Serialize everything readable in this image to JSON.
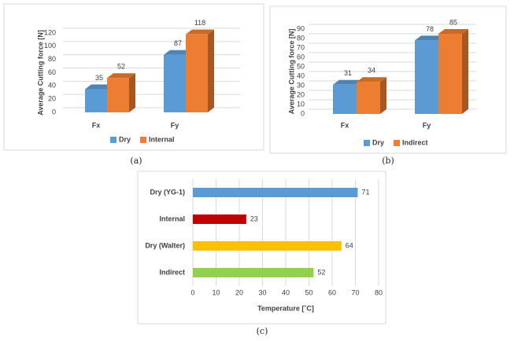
{
  "chart_data": [
    {
      "type": "bar3d",
      "caption": "(a)",
      "y_label": "Average Cutting force [N]",
      "categories": [
        "Fx",
        "Fy"
      ],
      "series": [
        {
          "name": "Dry",
          "color": "#5b9bd5",
          "values": [
            35,
            87
          ]
        },
        {
          "name": "Internal",
          "color": "#ed7d31",
          "values": [
            52,
            118
          ]
        }
      ],
      "ylim": [
        0,
        120
      ],
      "yticks": [
        0,
        20,
        40,
        60,
        80,
        100,
        120
      ],
      "grid": true,
      "legend": "bottom"
    },
    {
      "type": "bar3d",
      "caption": "(b)",
      "y_label": "Average Cutting force [N]",
      "categories": [
        "Fx",
        "Fy"
      ],
      "series": [
        {
          "name": "Dry",
          "color": "#5b9bd5",
          "values": [
            31,
            78
          ]
        },
        {
          "name": "Indirect",
          "color": "#ed7d31",
          "values": [
            34,
            85
          ]
        }
      ],
      "ylim": [
        0,
        90
      ],
      "yticks": [
        0,
        10,
        20,
        30,
        40,
        50,
        60,
        70,
        80,
        90
      ],
      "grid": true,
      "legend": "bottom"
    },
    {
      "type": "hbar",
      "caption": "(c)",
      "x_label": "Temperature [˚C]",
      "categories": [
        "Dry (YG-1)",
        "Internal",
        "Dry (Walter)",
        "Indirect"
      ],
      "values": [
        71,
        23,
        64,
        52
      ],
      "colors": [
        "#5b9bd5",
        "#c00000",
        "#ffc000",
        "#92d050"
      ],
      "xlim": [
        0,
        80
      ],
      "xticks": [
        0,
        10,
        20,
        30,
        40,
        50,
        60,
        70,
        80
      ],
      "grid": true
    }
  ]
}
